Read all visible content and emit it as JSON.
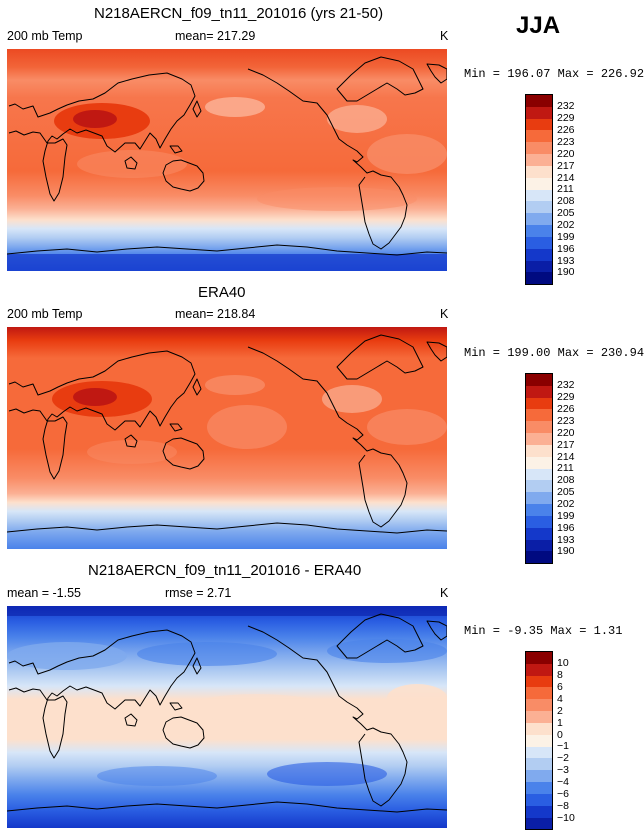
{
  "season": "JJA",
  "panels": [
    {
      "title": "N218AERCN_f09_tn11_201016 (yrs 21-50)",
      "left_label": "200 mb Temp",
      "center_label": "mean= 217.29",
      "unit": "K",
      "minmax": "Min = 196.07 Max = 226.92",
      "colors": [
        "#8a0000",
        "#c01812",
        "#e83c10",
        "#f66a3a",
        "#f98c66",
        "#fbb094",
        "#fde0cc",
        "#fcf2e6",
        "#d7e6f8",
        "#b2cdf2",
        "#80aaee",
        "#4a82ea",
        "#2a5ee2",
        "#1438ca",
        "#0a1ea6",
        "#000a80"
      ],
      "tick_labels": [
        "232",
        "229",
        "226",
        "223",
        "220",
        "217",
        "214",
        "211",
        "208",
        "205",
        "202",
        "199",
        "196",
        "193",
        "190"
      ]
    },
    {
      "title": "ERA40",
      "left_label": "200 mb Temp",
      "center_label": "mean= 218.84",
      "unit": "K",
      "minmax": "Min = 199.00 Max = 230.94",
      "colors": [
        "#8a0000",
        "#c01812",
        "#e83c10",
        "#f66a3a",
        "#f98c66",
        "#fbb094",
        "#fde0cc",
        "#fcf2e6",
        "#d7e6f8",
        "#b2cdf2",
        "#80aaee",
        "#4a82ea",
        "#2a5ee2",
        "#1438ca",
        "#0a1ea6",
        "#000a80"
      ],
      "tick_labels": [
        "232",
        "229",
        "226",
        "223",
        "220",
        "217",
        "214",
        "211",
        "208",
        "205",
        "202",
        "199",
        "196",
        "193",
        "190"
      ]
    },
    {
      "title": "N218AERCN_f09_tn11_201016 - ERA40",
      "left_label": "mean =  -1.55",
      "center_label": "rmse =   2.71",
      "unit": "K",
      "minmax": "Min =  -9.35 Max =   1.31",
      "colors": [
        "#8a0000",
        "#c01812",
        "#e83c10",
        "#f66a3a",
        "#f98c66",
        "#fbb094",
        "#fde0cc",
        "#fcf2e6",
        "#d7e6f8",
        "#b2cdf2",
        "#80aaee",
        "#4a82ea",
        "#2a5ee2",
        "#1438ca",
        "#0a1ea6",
        "#000a80"
      ],
      "tick_labels": [
        "10",
        "8",
        "6",
        "4",
        "2",
        "1",
        "0",
        "−1",
        "−2",
        "−3",
        "−4",
        "−6",
        "−8",
        "−10"
      ]
    }
  ]
}
